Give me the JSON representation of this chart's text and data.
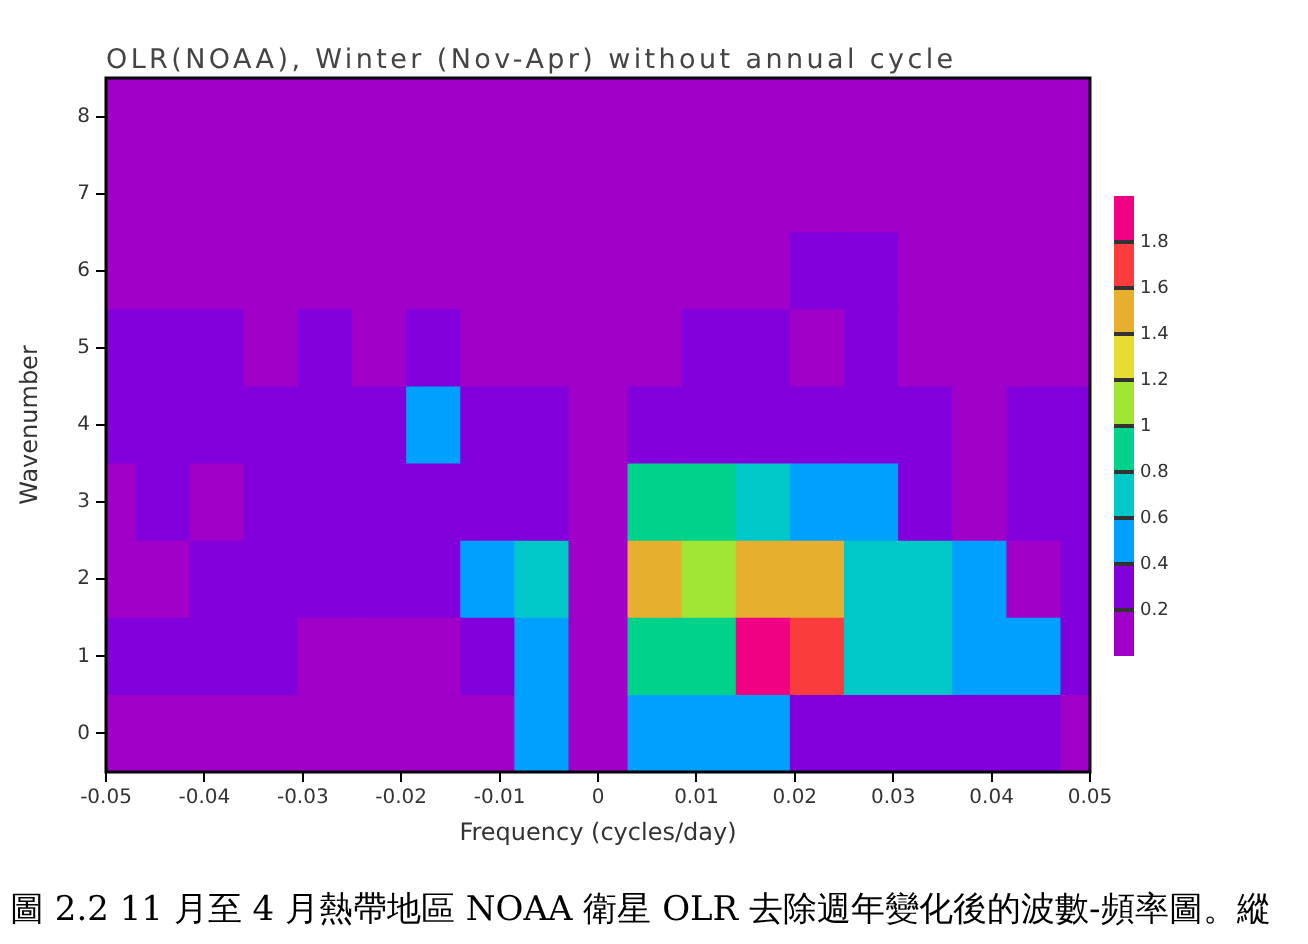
{
  "chart_data": {
    "type": "heatmap",
    "title": "OLR(NOAA), Winter (Nov-Apr) without annual cycle",
    "xlabel": "Frequency (cycles/day)",
    "ylabel": "Wavenumber",
    "x": [
      -0.05,
      -0.044,
      -0.039,
      -0.033,
      -0.028,
      -0.022,
      -0.017,
      -0.011,
      -0.006,
      0,
      0.006,
      0.011,
      0.017,
      0.022,
      0.028,
      0.033,
      0.039,
      0.044,
      0.05
    ],
    "y_categories": [
      "8",
      "7",
      "6",
      "5",
      "4",
      "3",
      "2",
      "1",
      "0"
    ],
    "cells": [
      [
        0.1,
        0.1,
        0.1,
        0.1,
        0.1,
        0.1,
        0.1,
        0.1,
        0.1,
        0.1,
        0.1,
        0.1,
        0.1,
        0.1,
        0.1,
        0.1,
        0.1,
        0.1,
        0.1
      ],
      [
        0.1,
        0.1,
        0.1,
        0.1,
        0.1,
        0.1,
        0.1,
        0.1,
        0.1,
        0.1,
        0.1,
        0.1,
        0.1,
        0.1,
        0.1,
        0.1,
        0.1,
        0.1,
        0.1
      ],
      [
        0.1,
        0.1,
        0.1,
        0.1,
        0.1,
        0.1,
        0.1,
        0.1,
        0.1,
        0.1,
        0.1,
        0.1,
        0.1,
        0.3,
        0.3,
        0.1,
        0.1,
        0.1,
        0.1
      ],
      [
        0.3,
        0.3,
        0.3,
        0.1,
        0.3,
        0.1,
        0.3,
        0.1,
        0.1,
        0.1,
        0.1,
        0.3,
        0.3,
        0.1,
        0.3,
        0.1,
        0.1,
        0.1,
        0.1
      ],
      [
        0.3,
        0.3,
        0.3,
        0.3,
        0.3,
        0.3,
        0.5,
        0.3,
        0.3,
        0.1,
        0.3,
        0.3,
        0.3,
        0.3,
        0.3,
        0.3,
        0.1,
        0.3,
        0.3
      ],
      [
        0.1,
        0.3,
        0.1,
        0.3,
        0.3,
        0.3,
        0.3,
        0.3,
        0.3,
        0.1,
        0.9,
        0.9,
        0.7,
        0.5,
        0.5,
        0.3,
        0.1,
        0.3,
        0.3
      ],
      [
        0.1,
        0.1,
        0.3,
        0.3,
        0.3,
        0.3,
        0.3,
        0.5,
        0.7,
        0.1,
        1.5,
        1.1,
        1.5,
        1.5,
        0.7,
        0.7,
        0.5,
        0.1,
        0.3
      ],
      [
        0.3,
        0.3,
        0.3,
        0.3,
        0.1,
        0.1,
        0.1,
        0.3,
        0.5,
        0.1,
        0.9,
        0.9,
        1.9,
        1.7,
        0.7,
        0.7,
        0.5,
        0.5,
        0.3
      ],
      [
        0.1,
        0.1,
        0.1,
        0.1,
        0.1,
        0.1,
        0.1,
        0.1,
        0.5,
        0.1,
        0.5,
        0.5,
        0.5,
        0.3,
        0.3,
        0.3,
        0.3,
        0.3,
        0.1
      ]
    ],
    "xlim": [
      -0.05,
      0.05
    ],
    "xticks": [
      -0.05,
      -0.04,
      -0.03,
      -0.02,
      -0.01,
      0,
      0.01,
      0.02,
      0.03,
      0.04,
      0.05
    ],
    "clim": [
      0,
      2
    ],
    "cticks": [
      0.2,
      0.4,
      0.6,
      0.8,
      1,
      1.2,
      1.4,
      1.6,
      1.8
    ],
    "annotations": [
      "圖 2.2 11 月至 4 月熱帶地區 NOAA 衛星 OLR 去除週年變化後的波數-頻率圖。縱"
    ]
  }
}
